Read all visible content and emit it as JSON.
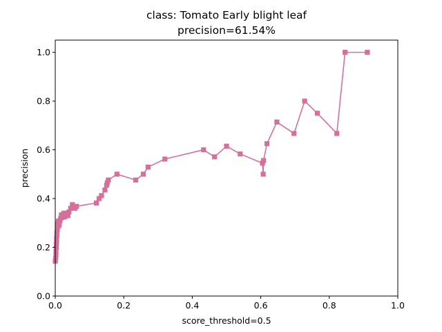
{
  "chart_data": {
    "type": "line",
    "title": "class: Tomato Early blight leaf",
    "subtitle": "precision=61.54%",
    "xlabel": "score_threshold=0.5",
    "ylabel": "precision",
    "xlim": [
      0.0,
      1.0
    ],
    "ylim": [
      0.0,
      1.05
    ],
    "xticks": [
      "0.0",
      "0.2",
      "0.4",
      "0.6",
      "0.8",
      "1.0"
    ],
    "yticks": [
      "0.0",
      "0.2",
      "0.4",
      "0.6",
      "0.8",
      "1.0"
    ],
    "grid": false,
    "series_color": "#d4709a",
    "series": [
      {
        "marker": "square",
        "x": [
          0.0,
          0.001,
          0.002,
          0.002,
          0.003,
          0.003,
          0.004,
          0.004,
          0.005,
          0.005,
          0.006,
          0.007,
          0.008,
          0.009,
          0.01,
          0.011,
          0.012,
          0.014,
          0.016,
          0.018,
          0.02,
          0.022,
          0.025,
          0.028,
          0.031,
          0.034,
          0.037,
          0.04,
          0.045,
          0.05,
          0.054,
          0.058,
          0.062,
          0.12,
          0.128,
          0.135,
          0.145,
          0.15,
          0.152,
          0.155,
          0.18,
          0.235,
          0.257,
          0.271,
          0.32,
          0.433,
          0.465,
          0.5,
          0.54,
          0.605,
          0.607,
          0.608,
          0.618,
          0.647,
          0.697,
          0.728,
          0.765,
          0.822,
          0.846,
          0.911
        ],
        "y": [
          0.143,
          0.154,
          0.167,
          0.182,
          0.2,
          0.211,
          0.222,
          0.235,
          0.25,
          0.261,
          0.273,
          0.286,
          0.296,
          0.304,
          0.308,
          0.29,
          0.3,
          0.31,
          0.32,
          0.333,
          0.322,
          0.33,
          0.34,
          0.325,
          0.34,
          0.335,
          0.33,
          0.345,
          0.36,
          0.375,
          0.365,
          0.36,
          0.368,
          0.382,
          0.4,
          0.412,
          0.435,
          0.455,
          0.465,
          0.476,
          0.5,
          0.476,
          0.5,
          0.529,
          0.562,
          0.6,
          0.571,
          0.615,
          0.583,
          0.545,
          0.5,
          0.556,
          0.625,
          0.714,
          0.667,
          0.8,
          0.75,
          0.667,
          1.0,
          1.0
        ]
      }
    ]
  }
}
